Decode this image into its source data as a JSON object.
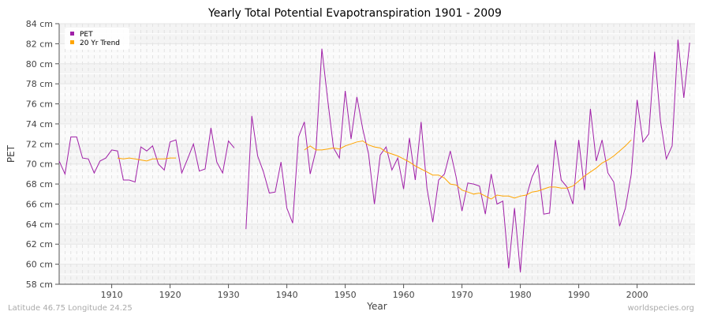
{
  "chart_data": {
    "type": "line",
    "title": "Yearly Total Potential Evapotranspiration 1901 - 2009",
    "xlabel": "Year",
    "ylabel": "PET",
    "xlim": [
      1901,
      2009
    ],
    "ylim": [
      58,
      84
    ],
    "y_unit": "cm",
    "x_ticks": [
      1910,
      1920,
      1930,
      1940,
      1950,
      1960,
      1970,
      1980,
      1990,
      2000
    ],
    "y_ticks": [
      "58 cm",
      "60 cm",
      "62 cm",
      "64 cm",
      "66 cm",
      "68 cm",
      "70 cm",
      "72 cm",
      "74 cm",
      "76 cm",
      "78 cm",
      "80 cm",
      "82 cm",
      "84 cm"
    ],
    "grid": true,
    "legend_position": "top-left",
    "colors": {
      "pet": "#a020a8",
      "trend": "#ffa500"
    },
    "series": [
      {
        "name": "PET",
        "start_year": 1901,
        "values": [
          70.3,
          69.0,
          72.7,
          72.7,
          70.6,
          70.5,
          69.1,
          70.3,
          70.6,
          71.4,
          71.3,
          68.4,
          68.4,
          68.2,
          71.7,
          71.3,
          71.8,
          70.0,
          69.4,
          72.2,
          72.4,
          69.1,
          70.5,
          72.0,
          69.3,
          69.5,
          73.6,
          70.2,
          69.1,
          72.3,
          71.6,
          null,
          63.5,
          74.8,
          70.8,
          69.2,
          67.1,
          67.2,
          70.2,
          65.6,
          64.1,
          72.7,
          74.2,
          69.0,
          71.4,
          81.5,
          76.4,
          71.6,
          70.6,
          77.3,
          72.5,
          76.7,
          73.5,
          71.0,
          66.0,
          70.9,
          71.7,
          69.4,
          70.6,
          67.5,
          72.6,
          68.4,
          74.2,
          67.6,
          64.2,
          68.4,
          69.0,
          71.3,
          68.7,
          65.3,
          68.1,
          68.0,
          67.8,
          65.0,
          69.0,
          66.0,
          66.3,
          59.6,
          65.6,
          59.2,
          66.7,
          68.7,
          69.9,
          65.0,
          65.1,
          72.4,
          68.4,
          67.7,
          66.0,
          72.4,
          67.4,
          75.5,
          70.3,
          72.4,
          69.1,
          68.2,
          63.8,
          65.6,
          69.0,
          76.4,
          72.2,
          73.0,
          81.2,
          74.3,
          70.5,
          71.8,
          82.4,
          76.6,
          82.1
        ]
      },
      {
        "name": "20 Yr Trend",
        "segments": [
          {
            "start_year": 1911,
            "values": [
              70.6,
              70.5,
              70.6,
              70.5,
              70.4,
              70.3,
              70.5,
              70.5,
              70.5,
              70.6,
              70.6
            ]
          },
          {
            "start_year": 1943,
            "values": [
              71.4,
              71.8,
              71.4,
              71.4,
              71.5,
              71.6,
              71.5,
              71.8,
              72.0,
              72.2,
              72.3,
              71.9,
              71.7,
              71.6,
              71.2,
              71.0,
              70.8,
              70.5,
              70.2,
              69.8,
              69.5,
              69.2,
              68.9,
              68.9,
              68.6,
              68.0,
              67.9,
              67.4,
              67.2,
              67.0,
              67.1,
              66.8,
              66.5,
              66.9,
              66.8,
              66.8,
              66.6,
              66.8,
              66.9,
              67.2,
              67.3,
              67.5,
              67.7,
              67.7,
              67.6,
              67.6,
              67.8,
              68.3,
              68.8,
              69.2,
              69.6,
              70.1,
              70.4,
              70.8,
              71.3,
              71.8,
              72.4
            ]
          }
        ]
      }
    ]
  },
  "footer": {
    "location": "Latitude 46.75 Longitude 24.25",
    "credit": "worldspecies.org"
  }
}
